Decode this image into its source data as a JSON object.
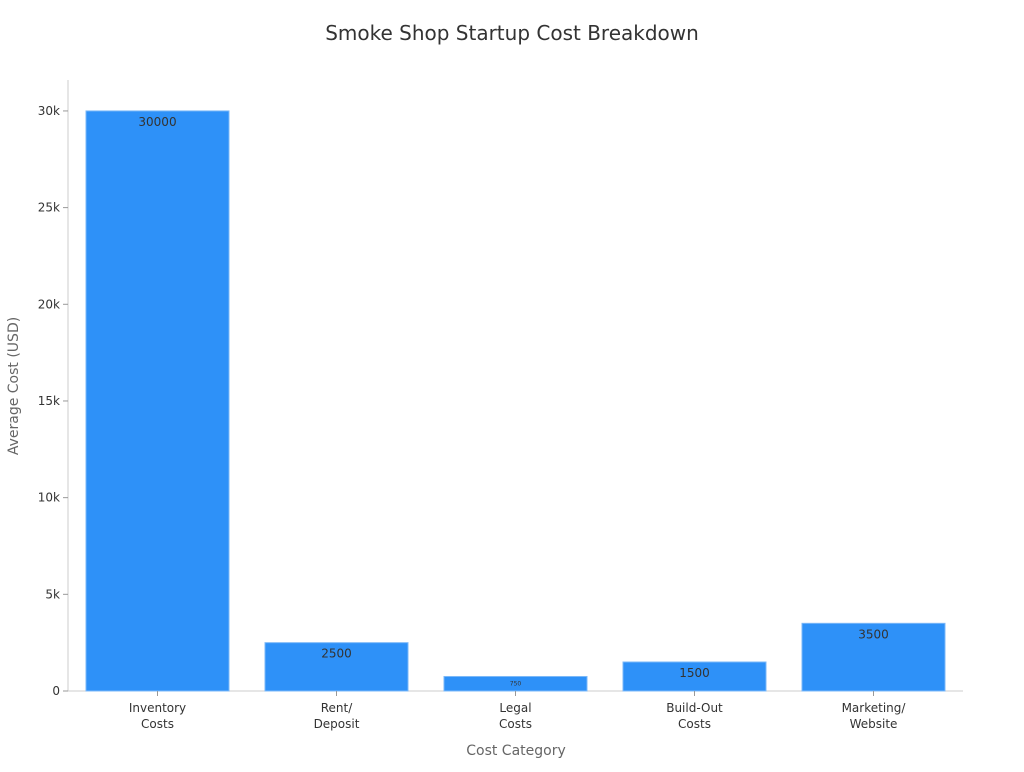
{
  "chart_data": {
    "type": "bar",
    "title": "Smoke Shop Startup Cost Breakdown",
    "xlabel": "Cost Category",
    "ylabel": "Average Cost (USD)",
    "categories": [
      [
        "Inventory",
        "Costs"
      ],
      [
        "Rent/",
        "Deposit"
      ],
      [
        "Legal",
        "Costs"
      ],
      [
        "Build-Out",
        "Costs"
      ],
      [
        "Marketing/",
        "Website"
      ]
    ],
    "values": [
      30000,
      2500,
      750,
      1500,
      3500
    ],
    "data_labels": [
      "30000",
      "2500",
      "750",
      "1500",
      "3500"
    ],
    "ylim": [
      0,
      31600
    ],
    "yticks": [
      0,
      5000,
      10000,
      15000,
      20000,
      25000,
      30000
    ],
    "ytick_labels": [
      "0",
      "5k",
      "10k",
      "15k",
      "20k",
      "25k",
      "30k"
    ],
    "grid": false,
    "bar_color": "#2e91f8"
  }
}
